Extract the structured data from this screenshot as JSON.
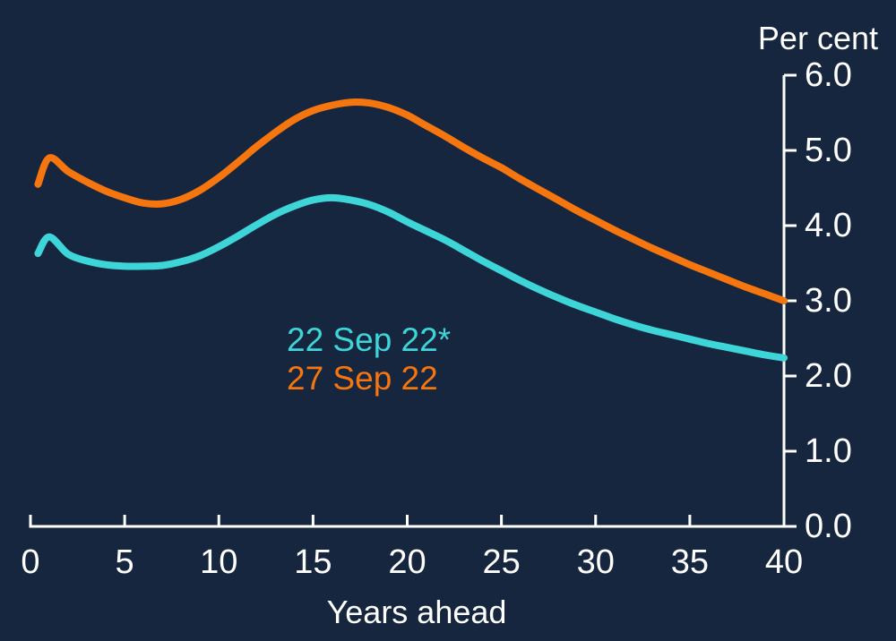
{
  "chart_data": {
    "type": "line",
    "title": "",
    "ylabel": "Per cent",
    "xlabel": "Years ahead",
    "xlim": [
      0,
      40
    ],
    "ylim": [
      0,
      6
    ],
    "grid": false,
    "legend_position": "center-inside",
    "background_color": "#15263E",
    "axis_color": "#FFFFFF",
    "text_color": "#FFFFFF",
    "x_ticks": [
      0,
      5,
      10,
      15,
      20,
      25,
      30,
      35,
      40
    ],
    "x_tick_labels": [
      "0",
      "5",
      "10",
      "15",
      "20",
      "25",
      "30",
      "35",
      "40"
    ],
    "y_ticks": [
      0,
      1,
      2,
      3,
      4,
      5,
      6
    ],
    "y_tick_labels": [
      "0.0",
      "1.0",
      "2.0",
      "3.0",
      "4.0",
      "5.0",
      "6.0"
    ],
    "x": [
      0.4,
      1,
      2,
      3,
      4,
      5,
      6,
      7,
      8,
      9,
      10,
      11,
      12,
      13,
      14,
      15,
      16,
      17,
      18,
      19,
      20,
      21,
      22,
      23,
      24,
      25,
      26,
      27,
      28,
      29,
      30,
      31,
      32,
      33,
      34,
      35,
      36,
      37,
      38,
      39,
      40
    ],
    "series": [
      {
        "name": "22 Sep 22*",
        "color": "#3ED5D8",
        "values": [
          3.63,
          3.85,
          3.62,
          3.53,
          3.48,
          3.46,
          3.46,
          3.47,
          3.52,
          3.6,
          3.72,
          3.86,
          4.01,
          4.15,
          4.26,
          4.34,
          4.37,
          4.34,
          4.28,
          4.18,
          4.05,
          3.93,
          3.81,
          3.67,
          3.53,
          3.4,
          3.27,
          3.15,
          3.04,
          2.94,
          2.85,
          2.76,
          2.68,
          2.61,
          2.55,
          2.49,
          2.43,
          2.38,
          2.33,
          2.28,
          2.24
        ]
      },
      {
        "name": "27 Sep 22",
        "color": "#F5750E",
        "values": [
          4.55,
          4.9,
          4.72,
          4.58,
          4.46,
          4.37,
          4.3,
          4.29,
          4.35,
          4.47,
          4.64,
          4.84,
          5.05,
          5.24,
          5.41,
          5.53,
          5.6,
          5.64,
          5.63,
          5.57,
          5.47,
          5.33,
          5.19,
          5.04,
          4.9,
          4.77,
          4.62,
          4.48,
          4.34,
          4.2,
          4.07,
          3.94,
          3.82,
          3.7,
          3.59,
          3.48,
          3.38,
          3.28,
          3.18,
          3.09,
          3.0
        ]
      }
    ]
  }
}
